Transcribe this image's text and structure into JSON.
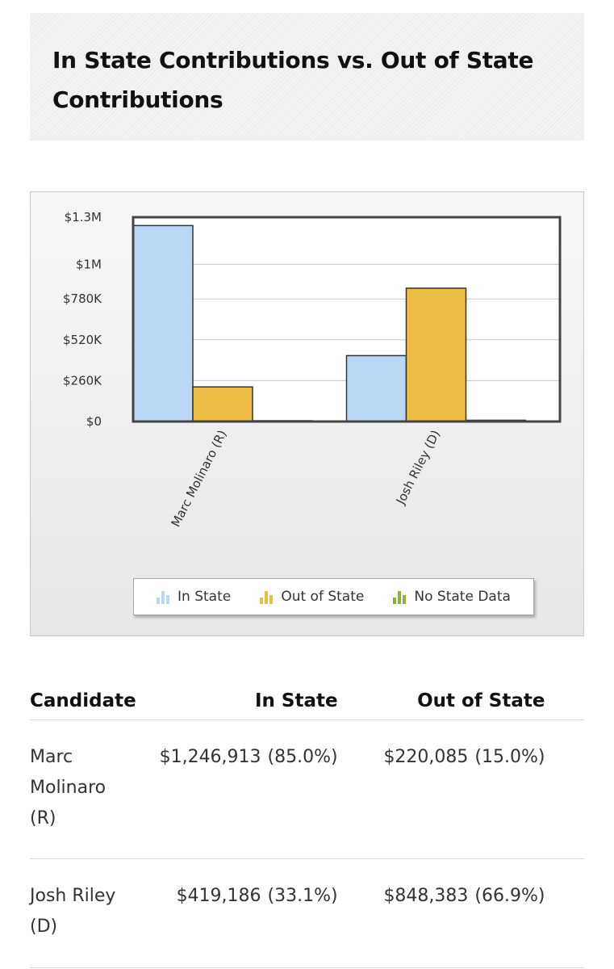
{
  "header": {
    "title": "In State Contributions vs. Out of State Contributions"
  },
  "chart_data": {
    "type": "bar",
    "categories": [
      "Marc Molinaro (R)",
      "Josh Riley (D)"
    ],
    "series": [
      {
        "name": "In State",
        "values": [
          1246913,
          419186
        ],
        "color": "#bad8f5"
      },
      {
        "name": "Out of State",
        "values": [
          220085,
          848383
        ],
        "color": "#ebbd42"
      },
      {
        "name": "No State Data",
        "values": [
          0,
          8000
        ],
        "color": "#8db23a"
      }
    ],
    "ylim": [
      0,
      1300000
    ],
    "yticks": [
      0,
      260000,
      520000,
      780000,
      1000000,
      1300000
    ],
    "ytick_labels": [
      "$0",
      "$260K",
      "$520K",
      "$780K",
      "$1M",
      "$1.3M"
    ],
    "grid": true,
    "legend_position": "bottom"
  },
  "table": {
    "headers": [
      "Candidate",
      "In State",
      "Out of State"
    ],
    "rows": [
      {
        "name": "Marc Molinaro (R)",
        "in_amount": "$1,246,913",
        "in_pct": "(85.0%)",
        "out_amount": "$220,085",
        "out_pct": "(15.0%)"
      },
      {
        "name": "Josh Riley (D)",
        "in_amount": "$419,186",
        "in_pct": "(33.1%)",
        "out_amount": "$848,383",
        "out_pct": "(66.9%)"
      }
    ]
  }
}
